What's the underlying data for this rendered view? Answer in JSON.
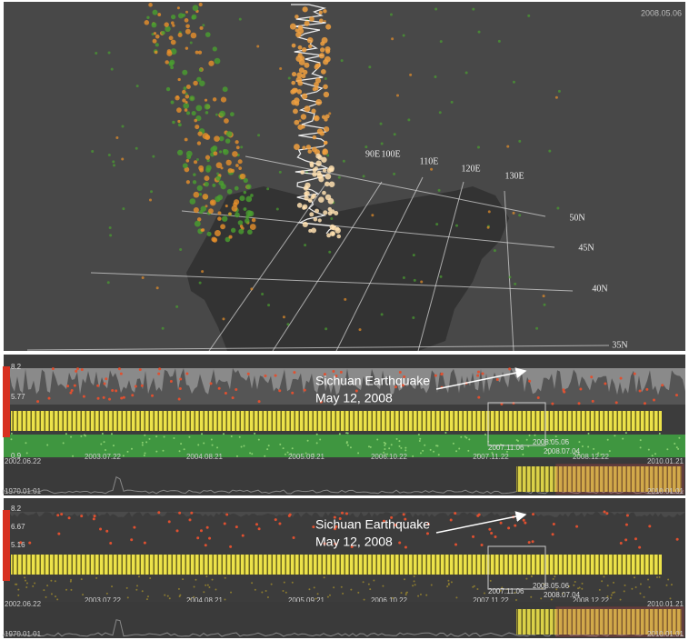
{
  "map_view": {
    "date": "2008.05.06",
    "longitudes": [
      "90E",
      "100E",
      "110E",
      "120E",
      "130E"
    ],
    "latitudes": [
      "50N",
      "45N",
      "40N",
      "35N"
    ]
  },
  "timelines": [
    {
      "magnitude_labels": [
        "8.2",
        "5.77",
        "0.9"
      ],
      "annotation": {
        "title": "Sichuan Earthquake",
        "date": "May 12, 2008"
      },
      "date_ticks": [
        "2003.07.22",
        "2004.08.21",
        "2005.09.21",
        "2006.10.22",
        "2007.11.22",
        "2008.12.22"
      ],
      "selection_labels": [
        "2007.11.06",
        "2008.05.06",
        "2008.07.04"
      ],
      "overview": {
        "start": "2002.06.22",
        "epoch": "1970.01.01",
        "end": "2010.01.21",
        "end_lower": "2010.01.01"
      }
    },
    {
      "magnitude_labels": [
        "8.2",
        "6.67",
        "5.16"
      ],
      "annotation": {
        "title": "Sichuan Earthquake",
        "date": "May 12, 2008"
      },
      "date_ticks": [
        "2003.07.22",
        "2004.08.21",
        "2005.09.21",
        "2006.10.22",
        "2007.11.22",
        "2008.12.22"
      ],
      "selection_labels": [
        "2007.11.06",
        "2008.05.06",
        "2008.07.04"
      ],
      "overview": {
        "start": "2002.06.22",
        "epoch": "1970.01.01",
        "end": "2010.01.21",
        "end_lower": "2010.01.01"
      }
    }
  ]
}
